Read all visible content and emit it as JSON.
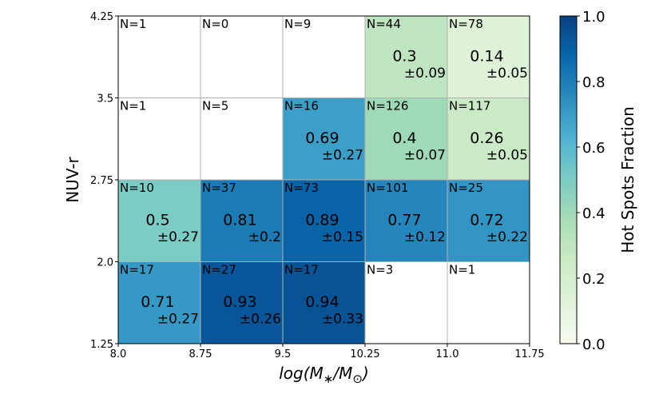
{
  "chart_data": {
    "type": "heatmap",
    "title": "",
    "xlabel": "log(M*/M⊙)",
    "ylabel": "NUV-r",
    "x_ticks": [
      "8.0",
      "8.75",
      "9.5",
      "10.25",
      "11.0",
      "11.75"
    ],
    "y_ticks": [
      "1.25",
      "2.0",
      "2.75",
      "3.5",
      "4.25"
    ],
    "x_edges": [
      8.0,
      8.75,
      9.5,
      10.25,
      11.0,
      11.75
    ],
    "y_edges": [
      1.25,
      2.0,
      2.75,
      3.5,
      4.25
    ],
    "grid": true,
    "colormap": "GnBu",
    "colors": [
      "#f7fcf0",
      "#e0f3db",
      "#ccebc5",
      "#a8ddb5",
      "#7bccc4",
      "#4eb3d3",
      "#2b8cbe",
      "#0868ac",
      "#084081"
    ],
    "colorbar": {
      "label": "Hot Spots Fraction",
      "range": [
        0.0,
        1.0
      ],
      "ticks": [
        "0.0",
        "0.2",
        "0.4",
        "0.6",
        "0.8",
        "1.0"
      ]
    },
    "cells": [
      {
        "col": 0,
        "row": 0,
        "n": "N=17",
        "value": 0.71,
        "value_text": "0.71",
        "error": "±0.27"
      },
      {
        "col": 1,
        "row": 0,
        "n": "N=27",
        "value": 0.93,
        "value_text": "0.93",
        "error": "±0.26"
      },
      {
        "col": 2,
        "row": 0,
        "n": "N=17",
        "value": 0.94,
        "value_text": "0.94",
        "error": "±0.33"
      },
      {
        "col": 3,
        "row": 0,
        "n": "N=3",
        "value": null,
        "value_text": "",
        "error": ""
      },
      {
        "col": 4,
        "row": 0,
        "n": "N=1",
        "value": null,
        "value_text": "",
        "error": ""
      },
      {
        "col": 0,
        "row": 1,
        "n": "N=10",
        "value": 0.5,
        "value_text": "0.5",
        "error": "±0.27"
      },
      {
        "col": 1,
        "row": 1,
        "n": "N=37",
        "value": 0.81,
        "value_text": "0.81",
        "error": "±0.2"
      },
      {
        "col": 2,
        "row": 1,
        "n": "N=73",
        "value": 0.89,
        "value_text": "0.89",
        "error": "±0.15"
      },
      {
        "col": 3,
        "row": 1,
        "n": "N=101",
        "value": 0.77,
        "value_text": "0.77",
        "error": "±0.12"
      },
      {
        "col": 4,
        "row": 1,
        "n": "N=25",
        "value": 0.72,
        "value_text": "0.72",
        "error": "±0.22"
      },
      {
        "col": 0,
        "row": 2,
        "n": "N=1",
        "value": null,
        "value_text": "",
        "error": ""
      },
      {
        "col": 1,
        "row": 2,
        "n": "N=5",
        "value": null,
        "value_text": "",
        "error": ""
      },
      {
        "col": 2,
        "row": 2,
        "n": "N=16",
        "value": 0.69,
        "value_text": "0.69",
        "error": "±0.27"
      },
      {
        "col": 3,
        "row": 2,
        "n": "N=126",
        "value": 0.4,
        "value_text": "0.4",
        "error": "±0.07"
      },
      {
        "col": 4,
        "row": 2,
        "n": "N=117",
        "value": 0.26,
        "value_text": "0.26",
        "error": "±0.05"
      },
      {
        "col": 0,
        "row": 3,
        "n": "N=1",
        "value": null,
        "value_text": "",
        "error": ""
      },
      {
        "col": 1,
        "row": 3,
        "n": "N=0",
        "value": null,
        "value_text": "",
        "error": ""
      },
      {
        "col": 2,
        "row": 3,
        "n": "N=9",
        "value": null,
        "value_text": "",
        "error": ""
      },
      {
        "col": 3,
        "row": 3,
        "n": "N=44",
        "value": 0.3,
        "value_text": "0.3",
        "error": "±0.09"
      },
      {
        "col": 4,
        "row": 3,
        "n": "N=78",
        "value": 0.14,
        "value_text": "0.14",
        "error": "±0.05"
      }
    ]
  }
}
